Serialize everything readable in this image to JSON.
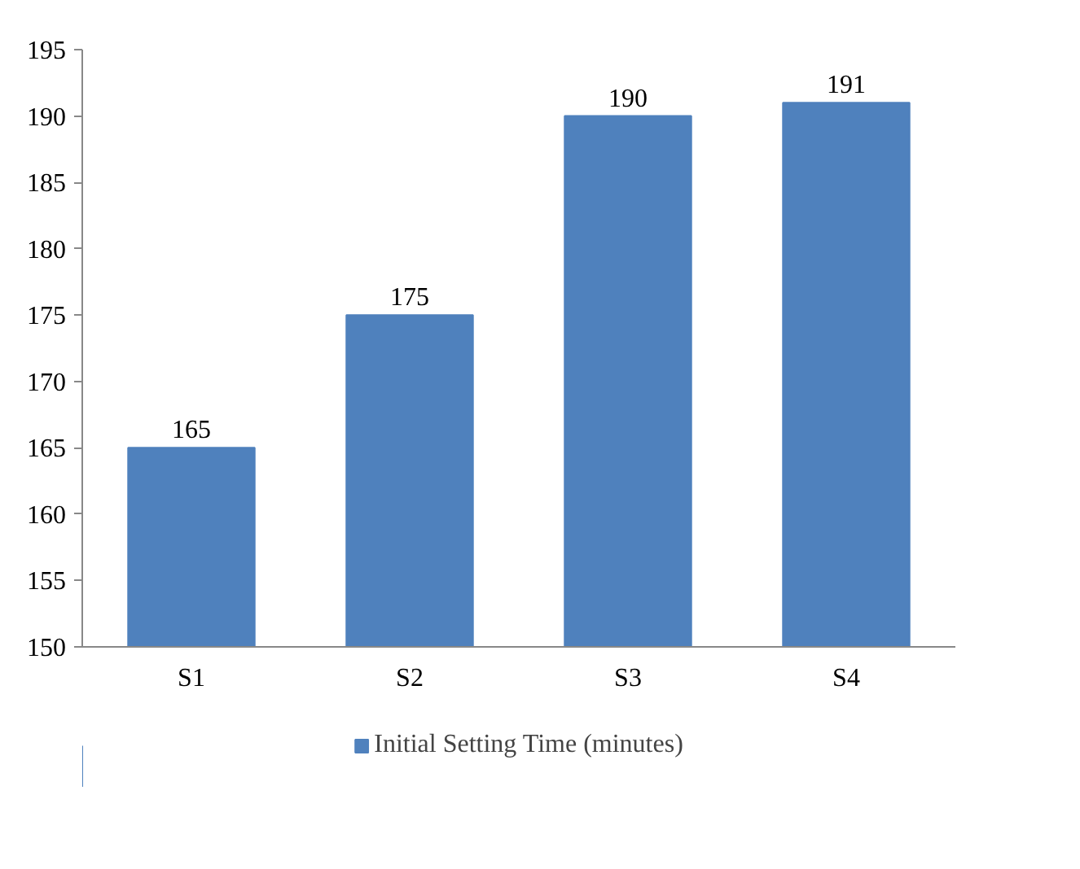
{
  "chart_data": {
    "type": "bar",
    "categories": [
      "S1",
      "S2",
      "S3",
      "S4"
    ],
    "series": [
      {
        "name": "Initial Setting Time (minutes)",
        "color": "#4f81bd",
        "values": [
          165,
          175,
          190,
          191
        ]
      }
    ],
    "ylim": [
      150,
      195
    ],
    "yticks": [
      150,
      155,
      160,
      165,
      170,
      175,
      180,
      185,
      190,
      195
    ],
    "grid": false,
    "legend": "bottom",
    "data_labels": true
  }
}
